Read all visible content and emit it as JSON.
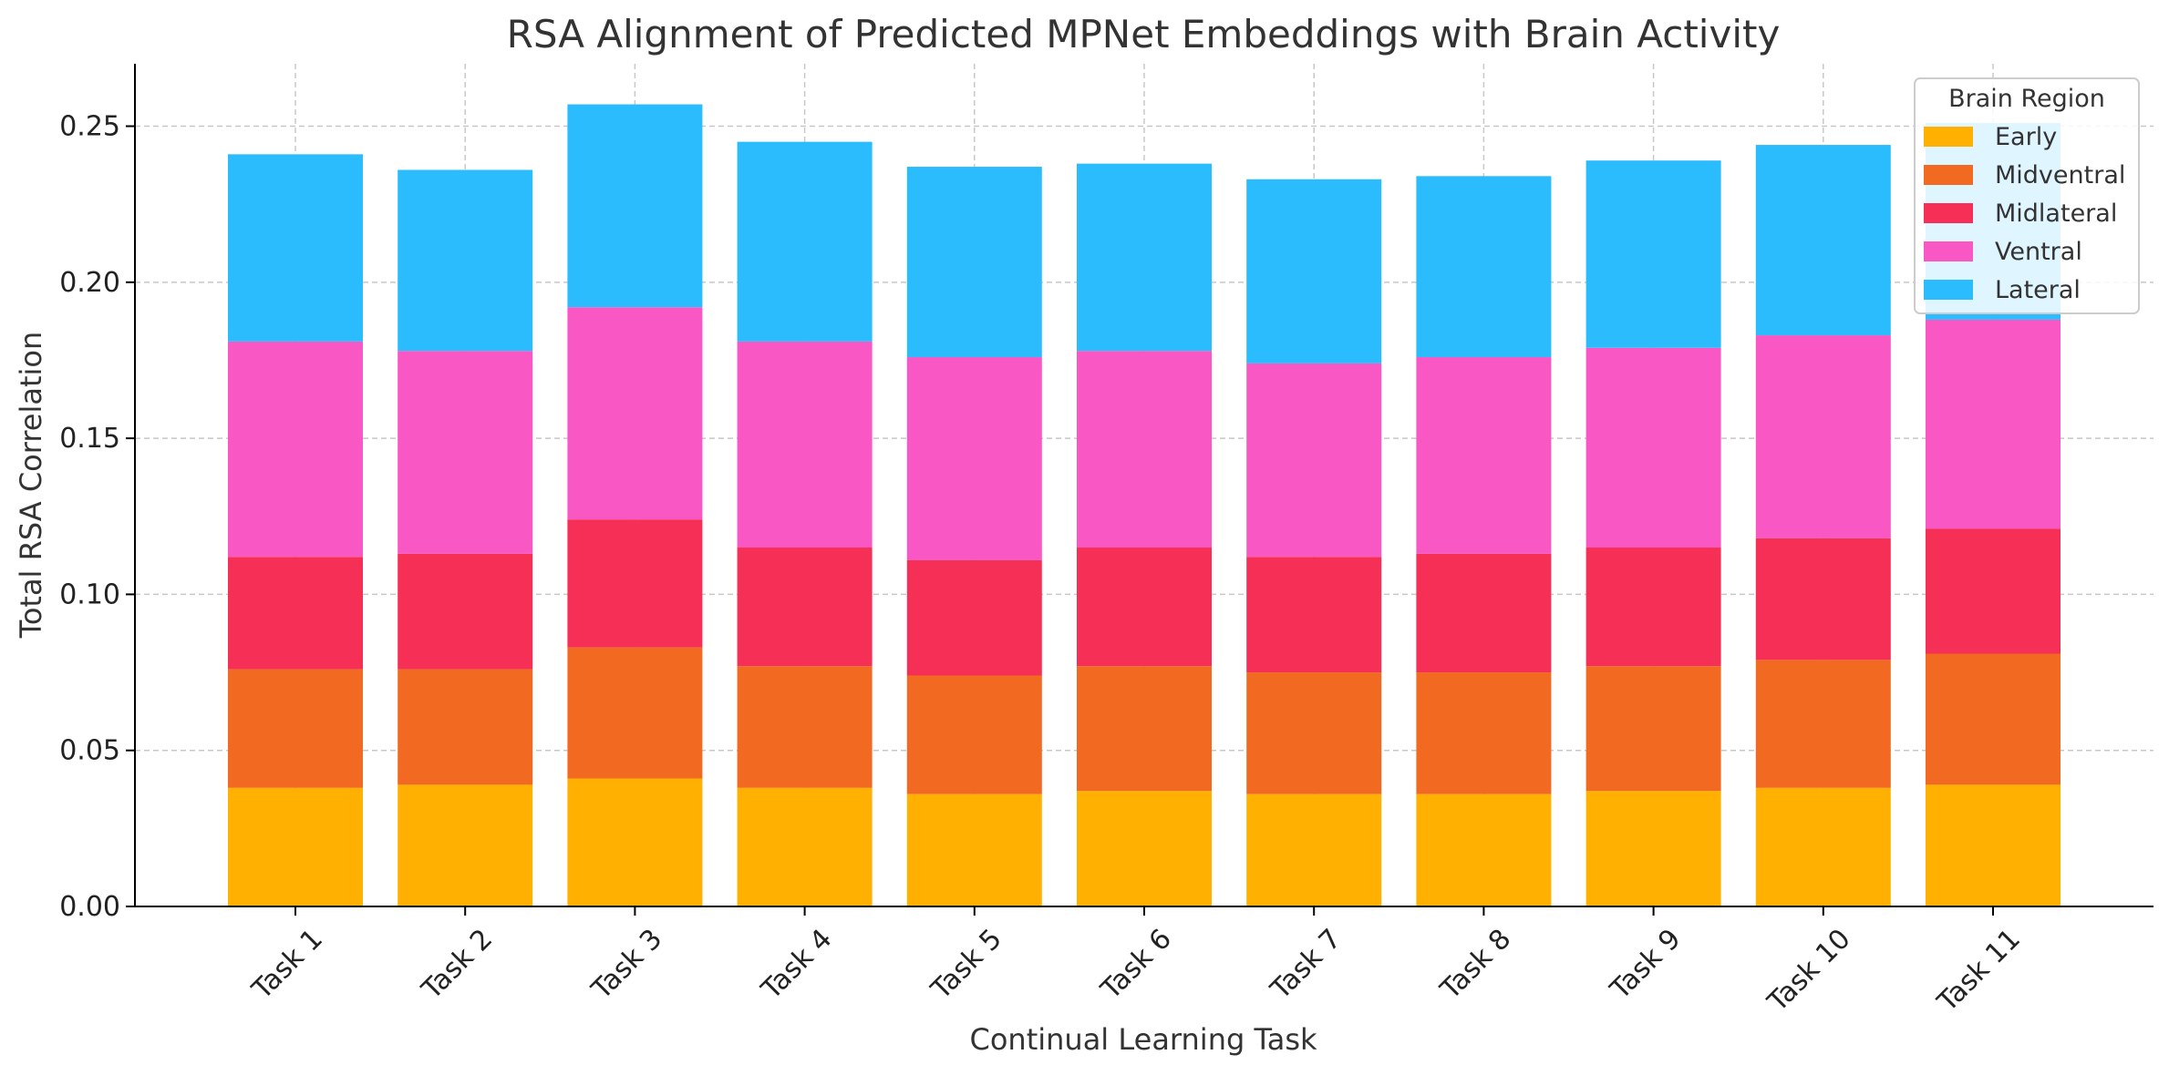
{
  "chart_data": {
    "type": "bar",
    "stacked": true,
    "title": "RSA Alignment of Predicted MPNet Embeddings with Brain Activity",
    "xlabel": "Continual Learning Task",
    "ylabel": "Total RSA Correlation",
    "ylim": [
      0,
      0.27
    ],
    "yticks": [
      "0.00",
      "0.05",
      "0.10",
      "0.15",
      "0.20",
      "0.25"
    ],
    "grid": true,
    "legend_position": "top-right",
    "legend_title": "Brain Region",
    "categories": [
      "Task 1",
      "Task 2",
      "Task 3",
      "Task 4",
      "Task 5",
      "Task 6",
      "Task 7",
      "Task 8",
      "Task 9",
      "Task 10",
      "Task 11"
    ],
    "series": [
      {
        "name": "Early",
        "color": "#ffb000",
        "values": [
          0.038,
          0.039,
          0.041,
          0.038,
          0.036,
          0.037,
          0.036,
          0.036,
          0.037,
          0.038,
          0.039
        ]
      },
      {
        "name": "Midventral",
        "color": "#f26a22",
        "values": [
          0.038,
          0.037,
          0.042,
          0.039,
          0.038,
          0.04,
          0.039,
          0.039,
          0.04,
          0.041,
          0.042
        ]
      },
      {
        "name": "Midlateral",
        "color": "#f52f55",
        "values": [
          0.036,
          0.037,
          0.041,
          0.038,
          0.037,
          0.038,
          0.037,
          0.038,
          0.038,
          0.039,
          0.04
        ]
      },
      {
        "name": "Ventral",
        "color": "#f957c3",
        "values": [
          0.069,
          0.065,
          0.068,
          0.066,
          0.065,
          0.063,
          0.062,
          0.063,
          0.064,
          0.065,
          0.067
        ]
      },
      {
        "name": "Lateral",
        "color": "#2abcfc",
        "values": [
          0.06,
          0.058,
          0.065,
          0.064,
          0.061,
          0.06,
          0.059,
          0.058,
          0.06,
          0.061,
          0.063
        ]
      }
    ]
  }
}
